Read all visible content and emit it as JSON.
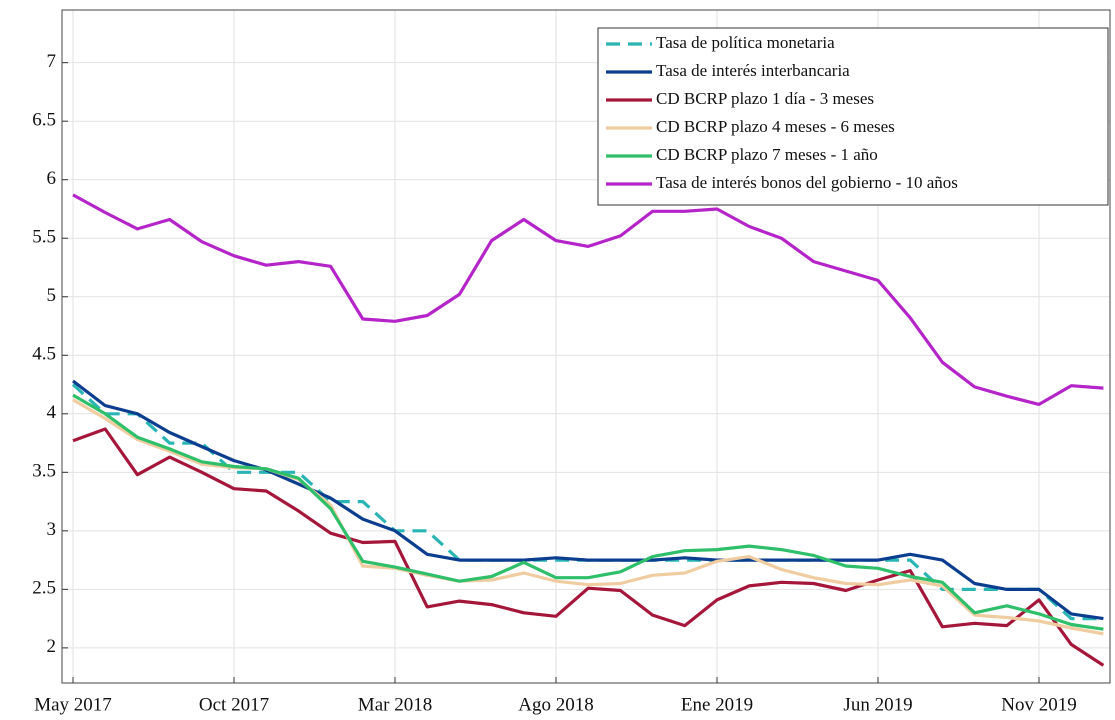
{
  "chart_data": {
    "type": "line",
    "categories": [
      "May 2017",
      null,
      null,
      null,
      null,
      "Oct 2017",
      null,
      null,
      null,
      null,
      "Mar 2018",
      null,
      null,
      null,
      null,
      "Ago 2018",
      null,
      null,
      null,
      null,
      "Ene 2019",
      null,
      null,
      null,
      null,
      "Jun 2019",
      null,
      null,
      null,
      null,
      "Nov 2019",
      null,
      null
    ],
    "ylim": [
      1.7,
      7.45
    ],
    "yticks": [
      2,
      2.5,
      3,
      3.5,
      4,
      4.5,
      5,
      5.5,
      6,
      6.5,
      7
    ],
    "grid": true,
    "legend": "top-right",
    "series": [
      {
        "name": "Tasa de política monetaria",
        "color": "#2ab5b5",
        "dashed": true,
        "values": [
          4.25,
          4.0,
          4.0,
          3.75,
          3.75,
          3.5,
          3.5,
          3.5,
          3.25,
          3.25,
          3.0,
          3.0,
          2.75,
          2.75,
          2.75,
          2.75,
          2.75,
          2.75,
          2.75,
          2.75,
          2.75,
          2.75,
          2.75,
          2.75,
          2.75,
          2.75,
          2.75,
          2.5,
          2.5,
          2.5,
          2.5,
          2.25,
          2.25
        ]
      },
      {
        "name": "Tasa de interés interbancaria",
        "color": "#0c3e8f",
        "values": [
          4.28,
          4.07,
          4.0,
          3.84,
          3.72,
          3.6,
          3.52,
          3.4,
          3.28,
          3.1,
          3.0,
          2.8,
          2.75,
          2.75,
          2.75,
          2.77,
          2.75,
          2.75,
          2.75,
          2.77,
          2.75,
          2.75,
          2.75,
          2.75,
          2.75,
          2.75,
          2.8,
          2.75,
          2.55,
          2.5,
          2.5,
          2.29,
          2.25
        ]
      },
      {
        "name": "CD BCRP plazo 1 día - 3 meses",
        "color": "#a5173a",
        "values": [
          3.77,
          3.87,
          3.48,
          3.63,
          3.5,
          3.36,
          3.34,
          3.17,
          2.98,
          2.9,
          2.91,
          2.35,
          2.4,
          2.37,
          2.3,
          2.27,
          2.51,
          2.49,
          2.28,
          2.19,
          2.41,
          2.53,
          2.56,
          2.55,
          2.49,
          2.58,
          2.66,
          2.18,
          2.21,
          2.19,
          2.41,
          2.03,
          1.85
        ]
      },
      {
        "name": "CD BCRP plazo 4 meses - 6 meses",
        "color": "#f0cda0",
        "values": [
          4.12,
          3.96,
          3.78,
          3.68,
          3.57,
          3.54,
          3.53,
          3.44,
          3.22,
          2.7,
          2.68,
          2.62,
          2.57,
          2.58,
          2.64,
          2.57,
          2.54,
          2.55,
          2.62,
          2.64,
          2.74,
          2.78,
          2.67,
          2.6,
          2.55,
          2.54,
          2.58,
          2.53,
          2.28,
          2.26,
          2.23,
          2.17,
          2.12
        ]
      },
      {
        "name": "CD BCRP plazo 7 meses - 1 año",
        "color": "#2fbf6a",
        "values": [
          4.16,
          4.0,
          3.8,
          3.7,
          3.59,
          3.55,
          3.53,
          3.45,
          3.19,
          2.74,
          2.69,
          2.63,
          2.57,
          2.61,
          2.73,
          2.6,
          2.6,
          2.65,
          2.78,
          2.83,
          2.84,
          2.87,
          2.84,
          2.79,
          2.7,
          2.68,
          2.61,
          2.56,
          2.3,
          2.36,
          2.29,
          2.2,
          2.16
        ]
      },
      {
        "name": "Tasa de interés bonos del gobierno - 10 años",
        "color": "#b424c8",
        "values": [
          5.87,
          5.72,
          5.58,
          5.66,
          5.47,
          5.35,
          5.27,
          5.3,
          5.26,
          4.81,
          4.79,
          4.84,
          5.02,
          5.48,
          5.66,
          5.48,
          5.43,
          5.52,
          5.73,
          5.73,
          5.75,
          5.6,
          5.5,
          5.3,
          5.22,
          5.14,
          4.82,
          4.44,
          4.23,
          4.15,
          4.08,
          4.24,
          4.22
        ]
      }
    ]
  }
}
